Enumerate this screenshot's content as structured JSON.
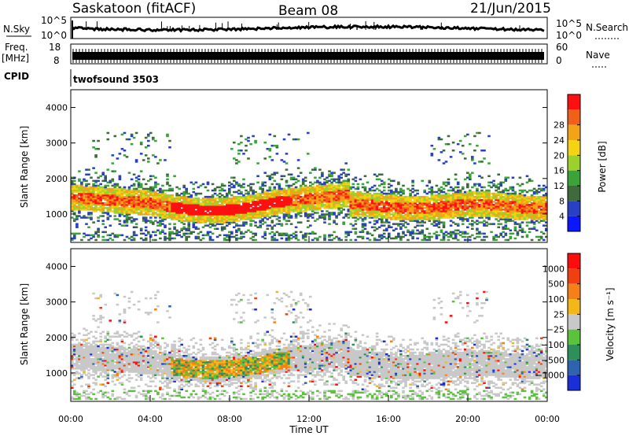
{
  "header": {
    "station": "Saskatoon (fitACF)",
    "beam": "Beam 08",
    "date": "21/Jun/2015"
  },
  "panels": {
    "nsky": {
      "label": "N.Sky",
      "top_tick": "10^5",
      "bottom_tick": "10^0",
      "right_label": "N.Search",
      "right_top_tick": "10^5",
      "right_bottom_tick": "10^0"
    },
    "freq": {
      "label_top": "Freq.",
      "label_unit": "[MHz]",
      "left_ticks": [
        "18",
        "8"
      ],
      "right_ticks": [
        "60",
        "0"
      ],
      "right_label": "Nave"
    },
    "cpid": {
      "label": "CPID",
      "value": "twofsound 3503"
    }
  },
  "chart_data": [
    {
      "type": "heatmap",
      "name": "power",
      "ylabel": "Slant Range [km]",
      "xlabel": "",
      "ylim": [
        200,
        4500
      ],
      "yticks": [
        "1000",
        "2000",
        "3000",
        "4000"
      ],
      "x_range_hours": [
        0,
        24
      ],
      "colorbar": {
        "label": "Power [dB]",
        "ticks": [
          "4",
          "8",
          "12",
          "16",
          "20",
          "24",
          "28"
        ],
        "colors": [
          "#0a17ff",
          "#2940c4",
          "#3f6a3a",
          "#3aa33a",
          "#9bd12a",
          "#f3d312",
          "#f4a218",
          "#f06018",
          "#ff1010"
        ]
      }
    },
    {
      "type": "heatmap",
      "name": "velocity",
      "ylabel": "Slant Range [km]",
      "xlabel": "Time UT",
      "ylim": [
        200,
        4500
      ],
      "yticks": [
        "1000",
        "2000",
        "3000",
        "4000"
      ],
      "x_range_hours": [
        0,
        24
      ],
      "xticks": [
        "00:00",
        "04:00",
        "08:00",
        "12:00",
        "16:00",
        "20:00",
        "00:00"
      ],
      "colorbar": {
        "label": "Velocity [m s⁻¹]",
        "ticks": [
          "1000",
          "500",
          "100",
          "25",
          "−25",
          "−100",
          "−500",
          "−1000"
        ],
        "colors": [
          "#1a2fd8",
          "#2f63b0",
          "#2f8f5a",
          "#5ac23c",
          "#c8c8c8",
          "#f3b818",
          "#f58018",
          "#f04010",
          "#ff0c0c"
        ]
      }
    }
  ]
}
